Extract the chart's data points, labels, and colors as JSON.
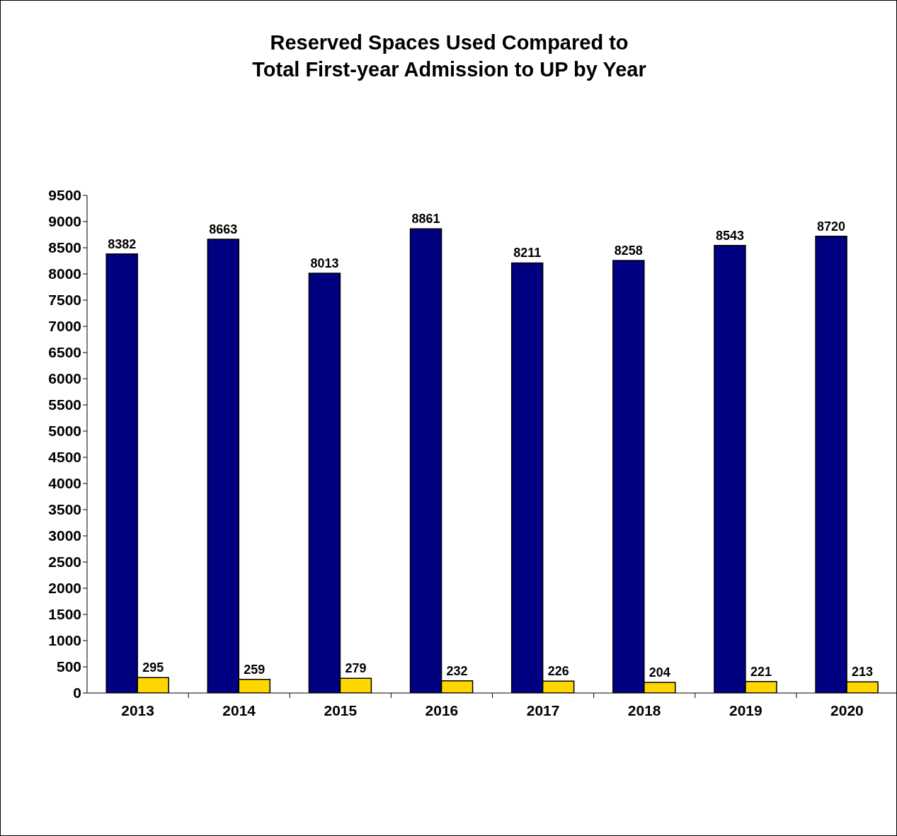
{
  "chart_data": {
    "type": "bar",
    "title": "Reserved Spaces Used Compared to\nTotal First-year Admission to UP by Year",
    "categories": [
      "2013",
      "2014",
      "2015",
      "2016",
      "2017",
      "2018",
      "2019",
      "2020"
    ],
    "series": [
      {
        "color": "#000080",
        "values": [
          8382,
          8663,
          8013,
          8861,
          8211,
          8258,
          8543,
          8720
        ]
      },
      {
        "color": "#ffd700",
        "values": [
          295,
          259,
          279,
          232,
          226,
          204,
          221,
          213
        ]
      }
    ],
    "ylim": [
      0,
      9500
    ],
    "yticks": [
      0,
      500,
      1000,
      1500,
      2000,
      2500,
      3000,
      3500,
      4000,
      4500,
      5000,
      5500,
      6000,
      6500,
      7000,
      7500,
      8000,
      8500,
      9000,
      9500
    ],
    "data_labels": true,
    "grid": false,
    "legend": false
  }
}
